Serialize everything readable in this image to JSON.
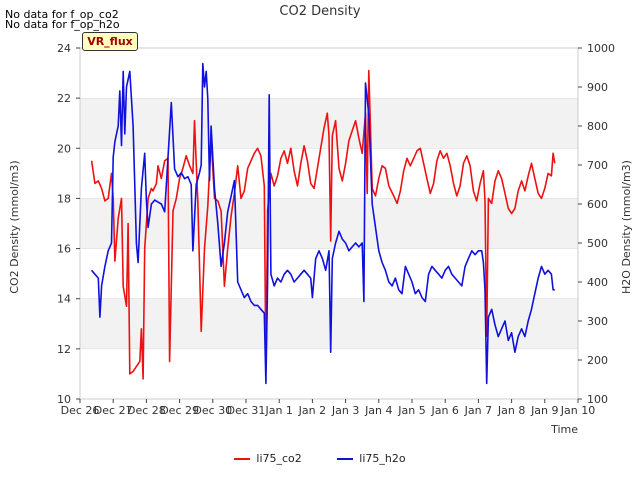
{
  "no_data_messages": [
    "No data for f_op_co2",
    "No data for f_op_h2o"
  ],
  "annotation_box": "VR_flux",
  "colors": {
    "co2": "#ee1111",
    "h2o": "#1111dd",
    "band": "#f2f2f2",
    "grid": "#dddddd"
  },
  "chart_data": {
    "type": "line",
    "title": "CO2 Density",
    "xlabel": "Time",
    "ylabel_left": "CO2 Density (mmol/m3)",
    "ylabel_right": "H2O Density (mmol/m3)",
    "x_ticks": [
      "Dec 26",
      "Dec 27",
      "Dec 28",
      "Dec 29",
      "Dec 30",
      "Dec 31",
      "Jan 1",
      "Jan 2",
      "Jan 3",
      "Jan 4",
      "Jan 5",
      "Jan 6",
      "Jan 7",
      "Jan 8",
      "Jan 9",
      "Jan 10"
    ],
    "xlim": [
      0,
      15
    ],
    "ylim_left": [
      10,
      24
    ],
    "ylim_right": [
      100,
      1000
    ],
    "y_ticks_left": [
      10,
      12,
      14,
      16,
      18,
      20,
      22,
      24
    ],
    "y_ticks_right": [
      100,
      200,
      300,
      400,
      500,
      600,
      700,
      800,
      900,
      1000
    ],
    "legend_position": "bottom-center",
    "series": [
      {
        "name": "li75_co2",
        "axis": "left",
        "points": [
          [
            0.35,
            19.5
          ],
          [
            0.45,
            18.6
          ],
          [
            0.55,
            18.7
          ],
          [
            0.65,
            18.4
          ],
          [
            0.75,
            17.9
          ],
          [
            0.85,
            18.0
          ],
          [
            0.95,
            19.0
          ],
          [
            1.0,
            18.0
          ],
          [
            1.05,
            15.5
          ],
          [
            1.15,
            17.2
          ],
          [
            1.25,
            18.0
          ],
          [
            1.3,
            14.5
          ],
          [
            1.4,
            13.7
          ],
          [
            1.45,
            17.0
          ],
          [
            1.5,
            11.0
          ],
          [
            1.6,
            11.1
          ],
          [
            1.7,
            11.3
          ],
          [
            1.8,
            11.5
          ],
          [
            1.85,
            12.8
          ],
          [
            1.9,
            10.8
          ],
          [
            1.95,
            16.0
          ],
          [
            2.05,
            18.0
          ],
          [
            2.15,
            18.4
          ],
          [
            2.2,
            18.3
          ],
          [
            2.3,
            18.6
          ],
          [
            2.35,
            19.3
          ],
          [
            2.45,
            18.8
          ],
          [
            2.55,
            19.5
          ],
          [
            2.65,
            19.6
          ],
          [
            2.7,
            11.5
          ],
          [
            2.8,
            17.5
          ],
          [
            2.9,
            18.0
          ],
          [
            3.0,
            18.8
          ],
          [
            3.1,
            19.2
          ],
          [
            3.2,
            19.7
          ],
          [
            3.3,
            19.3
          ],
          [
            3.4,
            19.0
          ],
          [
            3.45,
            21.1
          ],
          [
            3.55,
            17.8
          ],
          [
            3.65,
            12.7
          ],
          [
            3.75,
            16.0
          ],
          [
            3.85,
            17.7
          ],
          [
            3.95,
            20.4
          ],
          [
            4.05,
            18.0
          ],
          [
            4.15,
            17.9
          ],
          [
            4.25,
            17.5
          ],
          [
            4.35,
            14.5
          ],
          [
            4.45,
            16.0
          ],
          [
            4.55,
            17.3
          ],
          [
            4.65,
            18.2
          ],
          [
            4.75,
            19.3
          ],
          [
            4.85,
            18.0
          ],
          [
            4.95,
            18.3
          ],
          [
            5.05,
            19.2
          ],
          [
            5.15,
            19.5
          ],
          [
            5.25,
            19.8
          ],
          [
            5.35,
            20.0
          ],
          [
            5.45,
            19.7
          ],
          [
            5.55,
            18.5
          ],
          [
            5.6,
            11.2
          ],
          [
            5.65,
            17.5
          ],
          [
            5.75,
            19.0
          ],
          [
            5.85,
            18.5
          ],
          [
            5.95,
            18.9
          ],
          [
            6.05,
            19.6
          ],
          [
            6.15,
            19.9
          ],
          [
            6.25,
            19.4
          ],
          [
            6.35,
            20.0
          ],
          [
            6.45,
            19.1
          ],
          [
            6.55,
            18.5
          ],
          [
            6.65,
            19.4
          ],
          [
            6.75,
            20.1
          ],
          [
            6.85,
            19.5
          ],
          [
            6.95,
            18.6
          ],
          [
            7.05,
            18.4
          ],
          [
            7.15,
            19.2
          ],
          [
            7.25,
            20.0
          ],
          [
            7.35,
            20.8
          ],
          [
            7.45,
            21.4
          ],
          [
            7.5,
            20.5
          ],
          [
            7.55,
            16.3
          ],
          [
            7.6,
            20.5
          ],
          [
            7.7,
            21.1
          ],
          [
            7.8,
            19.2
          ],
          [
            7.9,
            18.7
          ],
          [
            8.0,
            19.4
          ],
          [
            8.1,
            20.3
          ],
          [
            8.2,
            20.7
          ],
          [
            8.3,
            21.1
          ],
          [
            8.4,
            20.4
          ],
          [
            8.5,
            19.8
          ],
          [
            8.6,
            21.4
          ],
          [
            8.65,
            18.2
          ],
          [
            8.7,
            23.1
          ],
          [
            8.8,
            18.4
          ],
          [
            8.9,
            18.1
          ],
          [
            9.0,
            18.8
          ],
          [
            9.1,
            19.3
          ],
          [
            9.2,
            19.2
          ],
          [
            9.3,
            18.5
          ],
          [
            9.45,
            18.1
          ],
          [
            9.55,
            17.8
          ],
          [
            9.65,
            18.3
          ],
          [
            9.75,
            19.1
          ],
          [
            9.85,
            19.6
          ],
          [
            9.95,
            19.3
          ],
          [
            10.05,
            19.6
          ],
          [
            10.15,
            19.9
          ],
          [
            10.25,
            20.0
          ],
          [
            10.35,
            19.4
          ],
          [
            10.45,
            18.8
          ],
          [
            10.55,
            18.2
          ],
          [
            10.65,
            18.6
          ],
          [
            10.75,
            19.5
          ],
          [
            10.85,
            19.9
          ],
          [
            10.95,
            19.6
          ],
          [
            11.05,
            19.8
          ],
          [
            11.15,
            19.3
          ],
          [
            11.25,
            18.6
          ],
          [
            11.35,
            18.1
          ],
          [
            11.45,
            18.5
          ],
          [
            11.55,
            19.4
          ],
          [
            11.65,
            19.7
          ],
          [
            11.75,
            19.3
          ],
          [
            11.85,
            18.3
          ],
          [
            11.95,
            17.9
          ],
          [
            12.05,
            18.6
          ],
          [
            12.15,
            19.1
          ],
          [
            12.2,
            17.9
          ],
          [
            12.25,
            12.5
          ],
          [
            12.3,
            18.0
          ],
          [
            12.4,
            17.8
          ],
          [
            12.5,
            18.7
          ],
          [
            12.6,
            19.1
          ],
          [
            12.7,
            18.8
          ],
          [
            12.8,
            18.2
          ],
          [
            12.9,
            17.6
          ],
          [
            13.0,
            17.4
          ],
          [
            13.1,
            17.6
          ],
          [
            13.2,
            18.3
          ],
          [
            13.3,
            18.7
          ],
          [
            13.4,
            18.3
          ],
          [
            13.5,
            18.9
          ],
          [
            13.6,
            19.4
          ],
          [
            13.7,
            18.8
          ],
          [
            13.8,
            18.2
          ],
          [
            13.9,
            18.0
          ],
          [
            14.0,
            18.4
          ],
          [
            14.1,
            19.0
          ],
          [
            14.2,
            18.9
          ],
          [
            14.25,
            19.8
          ],
          [
            14.3,
            19.4
          ]
        ]
      },
      {
        "name": "li75_h2o",
        "axis": "right",
        "points": [
          [
            0.35,
            430
          ],
          [
            0.45,
            420
          ],
          [
            0.55,
            410
          ],
          [
            0.6,
            310
          ],
          [
            0.65,
            390
          ],
          [
            0.75,
            440
          ],
          [
            0.85,
            480
          ],
          [
            0.95,
            500
          ],
          [
            1.0,
            720
          ],
          [
            1.05,
            760
          ],
          [
            1.15,
            800
          ],
          [
            1.2,
            890
          ],
          [
            1.25,
            750
          ],
          [
            1.3,
            940
          ],
          [
            1.35,
            780
          ],
          [
            1.4,
            900
          ],
          [
            1.5,
            940
          ],
          [
            1.6,
            800
          ],
          [
            1.7,
            500
          ],
          [
            1.75,
            450
          ],
          [
            1.85,
            640
          ],
          [
            1.95,
            730
          ],
          [
            2.0,
            610
          ],
          [
            2.05,
            540
          ],
          [
            2.15,
            600
          ],
          [
            2.25,
            610
          ],
          [
            2.35,
            605
          ],
          [
            2.45,
            600
          ],
          [
            2.55,
            580
          ],
          [
            2.65,
            720
          ],
          [
            2.75,
            860
          ],
          [
            2.85,
            690
          ],
          [
            2.95,
            670
          ],
          [
            3.05,
            680
          ],
          [
            3.15,
            665
          ],
          [
            3.25,
            670
          ],
          [
            3.35,
            650
          ],
          [
            3.4,
            480
          ],
          [
            3.5,
            650
          ],
          [
            3.6,
            680
          ],
          [
            3.65,
            700
          ],
          [
            3.7,
            960
          ],
          [
            3.75,
            900
          ],
          [
            3.8,
            940
          ],
          [
            3.85,
            870
          ],
          [
            3.9,
            660
          ],
          [
            3.95,
            800
          ],
          [
            4.05,
            640
          ],
          [
            4.15,
            550
          ],
          [
            4.25,
            440
          ],
          [
            4.35,
            500
          ],
          [
            4.45,
            580
          ],
          [
            4.55,
            620
          ],
          [
            4.65,
            660
          ],
          [
            4.75,
            400
          ],
          [
            4.85,
            380
          ],
          [
            4.95,
            360
          ],
          [
            5.05,
            370
          ],
          [
            5.15,
            350
          ],
          [
            5.25,
            340
          ],
          [
            5.35,
            340
          ],
          [
            5.45,
            330
          ],
          [
            5.55,
            320
          ],
          [
            5.6,
            140
          ],
          [
            5.65,
            400
          ],
          [
            5.7,
            880
          ],
          [
            5.75,
            420
          ],
          [
            5.85,
            390
          ],
          [
            5.95,
            410
          ],
          [
            6.05,
            400
          ],
          [
            6.15,
            420
          ],
          [
            6.25,
            430
          ],
          [
            6.35,
            420
          ],
          [
            6.45,
            400
          ],
          [
            6.55,
            410
          ],
          [
            6.65,
            420
          ],
          [
            6.75,
            430
          ],
          [
            6.85,
            420
          ],
          [
            6.95,
            410
          ],
          [
            7.0,
            360
          ],
          [
            7.1,
            460
          ],
          [
            7.2,
            480
          ],
          [
            7.3,
            460
          ],
          [
            7.4,
            430
          ],
          [
            7.5,
            480
          ],
          [
            7.55,
            220
          ],
          [
            7.6,
            460
          ],
          [
            7.7,
            500
          ],
          [
            7.8,
            530
          ],
          [
            7.9,
            510
          ],
          [
            8.0,
            500
          ],
          [
            8.1,
            480
          ],
          [
            8.2,
            490
          ],
          [
            8.3,
            500
          ],
          [
            8.4,
            490
          ],
          [
            8.5,
            500
          ],
          [
            8.55,
            350
          ],
          [
            8.6,
            910
          ],
          [
            8.7,
            830
          ],
          [
            8.8,
            600
          ],
          [
            8.9,
            540
          ],
          [
            9.0,
            480
          ],
          [
            9.1,
            450
          ],
          [
            9.2,
            430
          ],
          [
            9.3,
            400
          ],
          [
            9.4,
            390
          ],
          [
            9.5,
            410
          ],
          [
            9.6,
            380
          ],
          [
            9.7,
            370
          ],
          [
            9.8,
            440
          ],
          [
            9.9,
            420
          ],
          [
            10.0,
            400
          ],
          [
            10.1,
            370
          ],
          [
            10.2,
            380
          ],
          [
            10.3,
            360
          ],
          [
            10.4,
            350
          ],
          [
            10.5,
            420
          ],
          [
            10.6,
            440
          ],
          [
            10.7,
            430
          ],
          [
            10.8,
            420
          ],
          [
            10.9,
            410
          ],
          [
            11.0,
            430
          ],
          [
            11.1,
            440
          ],
          [
            11.2,
            420
          ],
          [
            11.3,
            410
          ],
          [
            11.4,
            400
          ],
          [
            11.5,
            390
          ],
          [
            11.6,
            440
          ],
          [
            11.7,
            460
          ],
          [
            11.8,
            480
          ],
          [
            11.9,
            470
          ],
          [
            12.0,
            480
          ],
          [
            12.1,
            480
          ],
          [
            12.15,
            450
          ],
          [
            12.2,
            380
          ],
          [
            12.25,
            140
          ],
          [
            12.3,
            310
          ],
          [
            12.4,
            330
          ],
          [
            12.5,
            290
          ],
          [
            12.6,
            260
          ],
          [
            12.7,
            280
          ],
          [
            12.8,
            300
          ],
          [
            12.9,
            250
          ],
          [
            13.0,
            270
          ],
          [
            13.1,
            220
          ],
          [
            13.2,
            260
          ],
          [
            13.3,
            280
          ],
          [
            13.4,
            260
          ],
          [
            13.5,
            300
          ],
          [
            13.6,
            330
          ],
          [
            13.7,
            370
          ],
          [
            13.8,
            410
          ],
          [
            13.9,
            440
          ],
          [
            14.0,
            420
          ],
          [
            14.1,
            430
          ],
          [
            14.2,
            420
          ],
          [
            14.25,
            380
          ],
          [
            14.3,
            380
          ]
        ]
      }
    ]
  }
}
